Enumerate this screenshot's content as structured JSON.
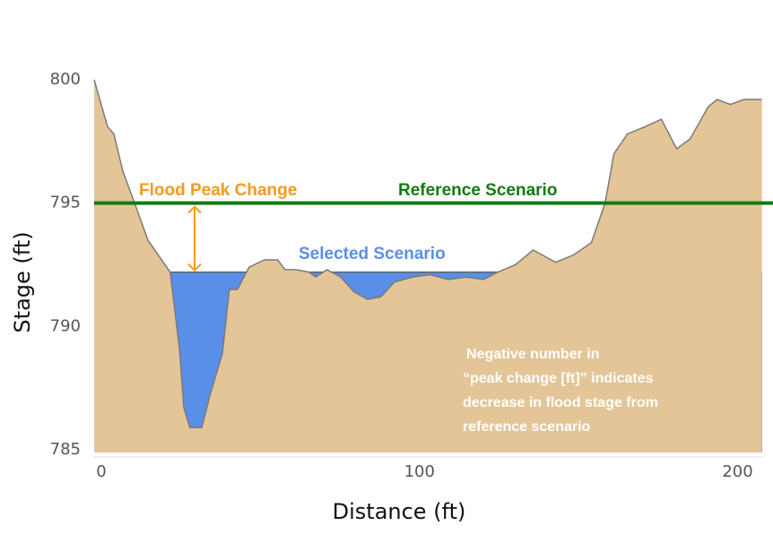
{
  "chart_data": {
    "type": "cross-section",
    "x_label": "Distance (ft)",
    "y_label": "Stage (ft)",
    "xlim": [
      0,
      210
    ],
    "ylim": [
      785,
      800
    ],
    "xticks": [
      0,
      100,
      200
    ],
    "yticks": [
      785,
      790,
      795,
      800
    ],
    "terrain": {
      "color": "#e3c597",
      "x": [
        0,
        4.2,
        6.2,
        9,
        12.7,
        16.9,
        23.9,
        26.8,
        28.2,
        30.1,
        33.8,
        36.6,
        40.3,
        42.5,
        45,
        48.7,
        53.5,
        57.7,
        60,
        63.4,
        67.6,
        69.6,
        73.2,
        77.5,
        81.7,
        85.9,
        90.1,
        94.4,
        100,
        105.6,
        111.3,
        116.9,
        122.5,
        126.8,
        132.4,
        138,
        145.1,
        150.7,
        156.3,
        160.6,
        163.4,
        167.6,
        173.2,
        178.3,
        183.1,
        187.3,
        193,
        195.8,
        200,
        204.2,
        209.9
      ],
      "values": [
        800,
        798.1,
        797.8,
        796.3,
        795,
        793.5,
        792.2,
        789.1,
        786.7,
        785.9,
        785.9,
        787.3,
        788.9,
        791.5,
        791.5,
        792.4,
        792.7,
        792.7,
        792.3,
        792.3,
        792.2,
        792,
        792.3,
        792,
        791.4,
        791.1,
        791.2,
        791.8,
        792,
        792.1,
        791.9,
        792,
        791.9,
        792.2,
        792.5,
        793.1,
        792.6,
        792.9,
        793.4,
        795,
        797,
        797.8,
        798.1,
        798.4,
        797.2,
        797.6,
        798.9,
        799.2,
        799,
        799.2,
        799.2
      ]
    },
    "reference": {
      "name": "Reference Scenario",
      "value": 795,
      "color": "#137a13"
    },
    "selected": {
      "name": "Selected Scenario",
      "value": 792.2,
      "color": "#5a8fe8"
    },
    "peak_change": {
      "label": "Flood Peak Change",
      "color": "#f59a1e"
    },
    "note": [
      "Negative number in",
      "“peak change [ft]” indicates",
      "decrease in flood stage from",
      "reference scenario"
    ]
  }
}
